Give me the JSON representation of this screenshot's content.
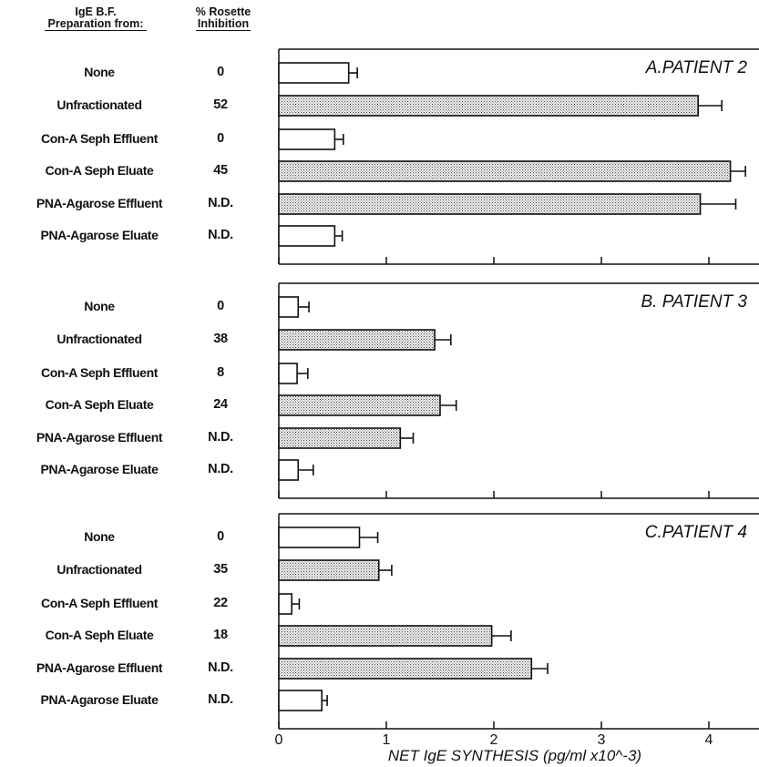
{
  "headers": {
    "prep_line1": "IgE B.F.",
    "prep_line2": "Preparation from:",
    "rosette_line1": "% Rosette",
    "rosette_line2": "Inhibition"
  },
  "chart_data": {
    "type": "bar",
    "orientation": "horizontal",
    "xlabel": "NET IgE SYNTHESIS (pg/ml x10^-3)",
    "xlim": [
      0,
      4.5
    ],
    "xticks": [
      "0",
      "1",
      "2",
      "3",
      "4"
    ],
    "categories": [
      "None",
      "Unfractionated",
      "Con-A Seph Effluent",
      "Con-A Seph Eluate",
      "PNA-Agarose Effluent",
      "PNA-Agarose Eluate"
    ],
    "panels": [
      {
        "title": "A.PATIENT 2",
        "rosette_inhibition": [
          "0",
          "52",
          "0",
          "45",
          "N.D.",
          "N.D."
        ],
        "values": [
          0.65,
          3.9,
          0.52,
          4.2,
          3.92,
          0.52
        ],
        "errors": [
          0.08,
          0.22,
          0.08,
          0.14,
          0.33,
          0.07
        ],
        "shaded": [
          false,
          true,
          false,
          true,
          true,
          false
        ]
      },
      {
        "title": "B. PATIENT 3",
        "rosette_inhibition": [
          "0",
          "38",
          "8",
          "24",
          "N.D.",
          "N.D."
        ],
        "values": [
          0.18,
          1.45,
          0.17,
          1.5,
          1.13,
          0.18
        ],
        "errors": [
          0.1,
          0.15,
          0.1,
          0.15,
          0.12,
          0.14
        ],
        "shaded": [
          false,
          true,
          false,
          true,
          true,
          false
        ]
      },
      {
        "title": "C.PATIENT 4",
        "rosette_inhibition": [
          "0",
          "35",
          "22",
          "18",
          "N.D.",
          "N.D."
        ],
        "values": [
          0.75,
          0.93,
          0.12,
          1.98,
          2.35,
          0.4
        ],
        "errors": [
          0.17,
          0.12,
          0.07,
          0.18,
          0.15,
          0.05
        ],
        "shaded": [
          false,
          true,
          false,
          true,
          true,
          false
        ]
      }
    ]
  }
}
